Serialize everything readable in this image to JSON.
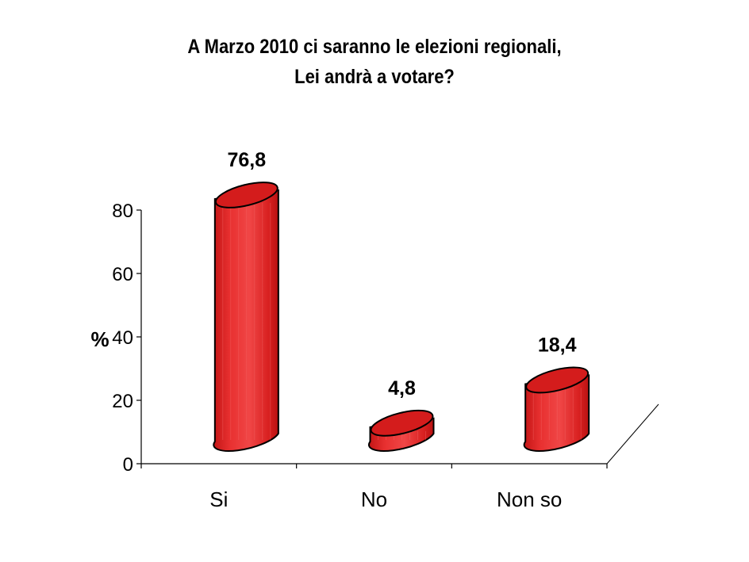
{
  "chart_data": {
    "type": "bar",
    "title_lines": [
      "A Marzo 2010 ci saranno le elezioni regionali,",
      "Lei andrà a votare?"
    ],
    "categories": [
      "Si",
      "No",
      "Non so"
    ],
    "values": [
      76.8,
      4.8,
      18.4
    ],
    "value_labels": [
      "76,8",
      "4,8",
      "18,4"
    ],
    "ylabel": "%",
    "xlabel": "",
    "ylim": [
      0,
      80
    ],
    "yticks": [
      0,
      20,
      40,
      60,
      80
    ],
    "bar_style": "3d-cylinder",
    "bar_color": "#e52222",
    "bar_outline": "#000000",
    "grid": false,
    "legend": "none"
  }
}
